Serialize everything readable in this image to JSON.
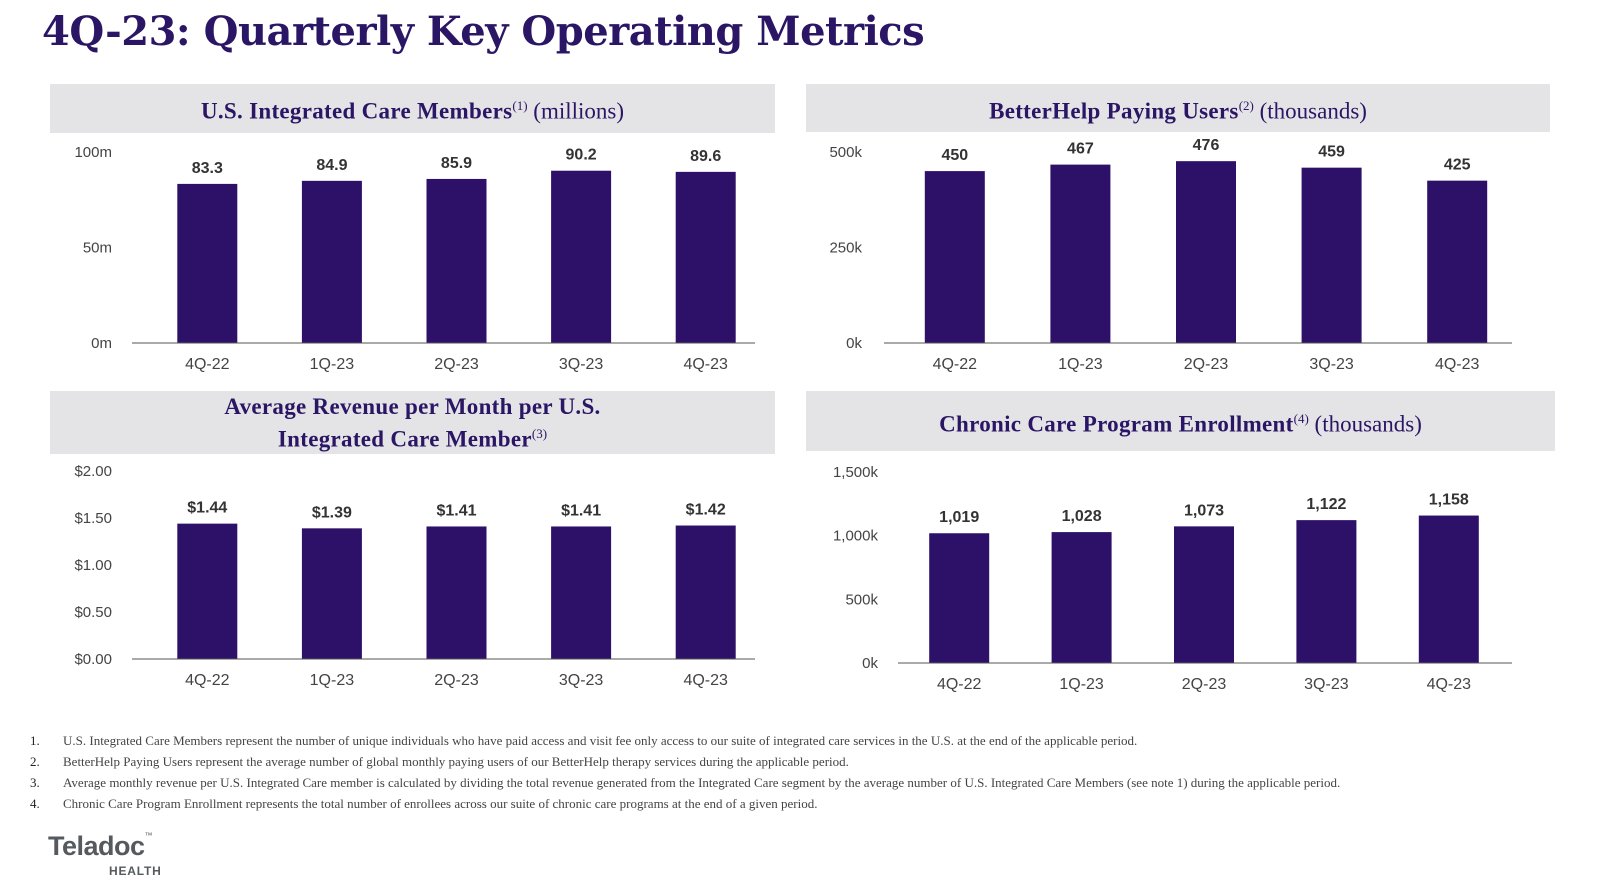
{
  "page": {
    "title": "4Q-23: Quarterly Key Operating Metrics"
  },
  "panels": [
    {
      "title_bold": "U.S. Integrated Care Members",
      "title_sup": "(1)",
      "title_unit": " (millions)"
    },
    {
      "title_bold": "BetterHelp Paying Users",
      "title_sup": "(2)",
      "title_unit": " (thousands)"
    },
    {
      "title_bold_line1": "Average Revenue per Month per U.S.",
      "title_bold_line2": "Integrated Care Member",
      "title_sup": "(3)"
    },
    {
      "title_bold": "Chronic Care Program Enrollment",
      "title_sup": "(4)",
      "title_unit": " (thousands)"
    }
  ],
  "chart_data": [
    {
      "type": "bar",
      "categories": [
        "4Q-22",
        "1Q-23",
        "2Q-23",
        "3Q-23",
        "4Q-23"
      ],
      "values": [
        83.3,
        84.9,
        85.9,
        90.2,
        89.6
      ],
      "value_labels": [
        "83.3",
        "84.9",
        "85.9",
        "90.2",
        "89.6"
      ],
      "ylim": [
        0,
        100
      ],
      "yticks": [
        0,
        50,
        100
      ],
      "ytick_labels": [
        "0m",
        "50m",
        "100m"
      ],
      "bar_color": "#2d1068",
      "grid": false
    },
    {
      "type": "bar",
      "categories": [
        "4Q-22",
        "1Q-23",
        "2Q-23",
        "3Q-23",
        "4Q-23"
      ],
      "values": [
        450,
        467,
        476,
        459,
        425
      ],
      "value_labels": [
        "450",
        "467",
        "476",
        "459",
        "425"
      ],
      "ylim": [
        0,
        500
      ],
      "yticks": [
        0,
        250,
        500
      ],
      "ytick_labels": [
        "0k",
        "250k",
        "500k"
      ],
      "bar_color": "#2d1068",
      "grid": false
    },
    {
      "type": "bar",
      "categories": [
        "4Q-22",
        "1Q-23",
        "2Q-23",
        "3Q-23",
        "4Q-23"
      ],
      "values": [
        1.44,
        1.39,
        1.41,
        1.41,
        1.42
      ],
      "value_labels": [
        "$1.44",
        "$1.39",
        "$1.41",
        "$1.41",
        "$1.42"
      ],
      "ylim": [
        0,
        2
      ],
      "yticks": [
        0,
        0.5,
        1,
        1.5,
        2
      ],
      "ytick_labels": [
        "$0.00",
        "$0.50",
        "$1.00",
        "$1.50",
        "$2.00"
      ],
      "bar_color": "#2d1068",
      "grid": false
    },
    {
      "type": "bar",
      "categories": [
        "4Q-22",
        "1Q-23",
        "2Q-23",
        "3Q-23",
        "4Q-23"
      ],
      "values": [
        1019,
        1028,
        1073,
        1122,
        1158
      ],
      "value_labels": [
        "1,019",
        "1,028",
        "1,073",
        "1,122",
        "1,158"
      ],
      "ylim": [
        0,
        1500
      ],
      "yticks": [
        0,
        500,
        1000,
        1500
      ],
      "ytick_labels": [
        "0k",
        "500k",
        "1,000k",
        "1,500k"
      ],
      "bar_color": "#2d1068",
      "grid": false
    }
  ],
  "footnotes": [
    {
      "num": "1.",
      "text": "U.S. Integrated Care Members represent the number of unique individuals who have paid access and visit fee only access to our suite of integrated care services in the U.S. at the end of the applicable period."
    },
    {
      "num": "2.",
      "text": "BetterHelp Paying Users represent the average number of  global monthly paying users of our BetterHelp therapy services during the applicable period."
    },
    {
      "num": "3.",
      "text": "Average monthly revenue per U.S. Integrated Care member is calculated by dividing the total revenue generated from the Integrated Care segment by the average number of U.S. Integrated Care Members (see note 1) during the applicable period."
    },
    {
      "num": "4.",
      "text": "Chronic Care Program Enrollment represents the total number of enrollees across our suite of chronic care programs at the end of a given period."
    }
  ],
  "logo": {
    "word": "Teladoc",
    "tm": "™",
    "sub": "HEALTH"
  }
}
